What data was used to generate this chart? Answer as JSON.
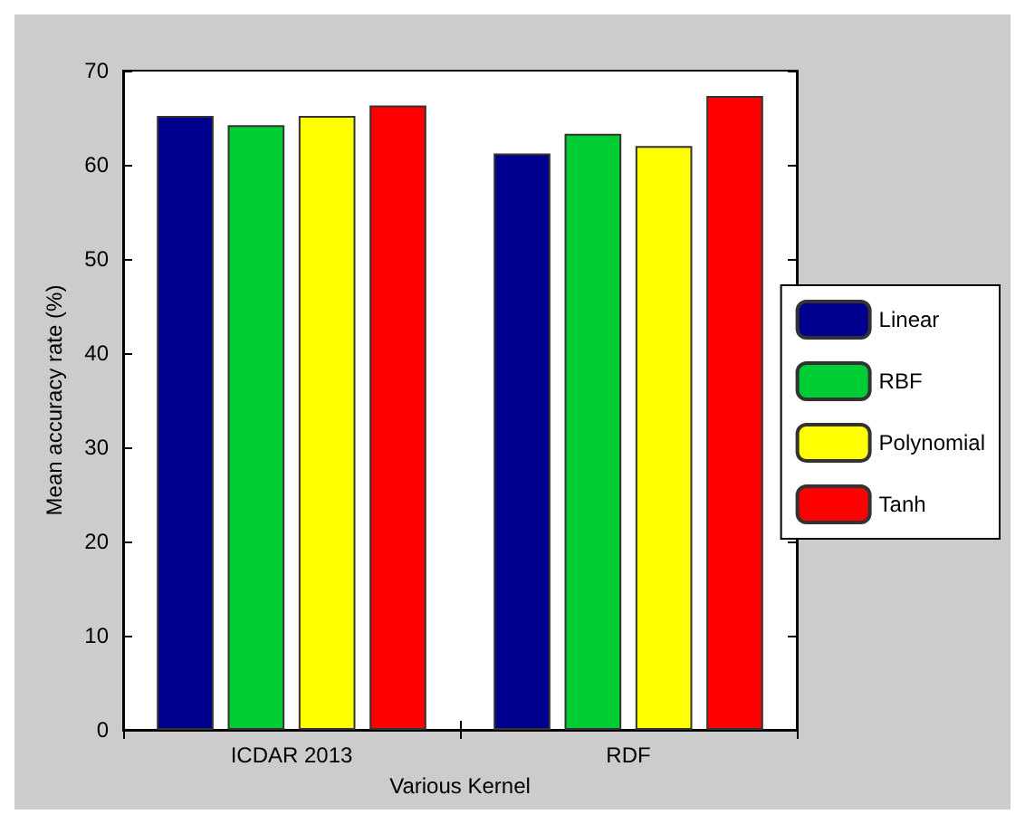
{
  "chart_data": {
    "type": "bar",
    "xlabel": "Various Kernel",
    "ylabel": "Mean accuracy rate (%)",
    "categories": [
      "ICDAR 2013",
      "RDF"
    ],
    "series": [
      {
        "name": "Linear",
        "color": "#00008f",
        "values": [
          65.2,
          61.2
        ]
      },
      {
        "name": "RBF",
        "color": "#00cc33",
        "values": [
          64.2,
          63.3
        ]
      },
      {
        "name": "Polynomial",
        "color": "#ffff00",
        "values": [
          65.2,
          62.0
        ]
      },
      {
        "name": "Tanh",
        "color": "#ff0000",
        "values": [
          66.3,
          67.3
        ]
      }
    ],
    "ylim": [
      0,
      70
    ],
    "yticks": [
      0,
      10,
      20,
      30,
      40,
      50,
      60,
      70
    ],
    "grid": false,
    "legend": "right"
  }
}
